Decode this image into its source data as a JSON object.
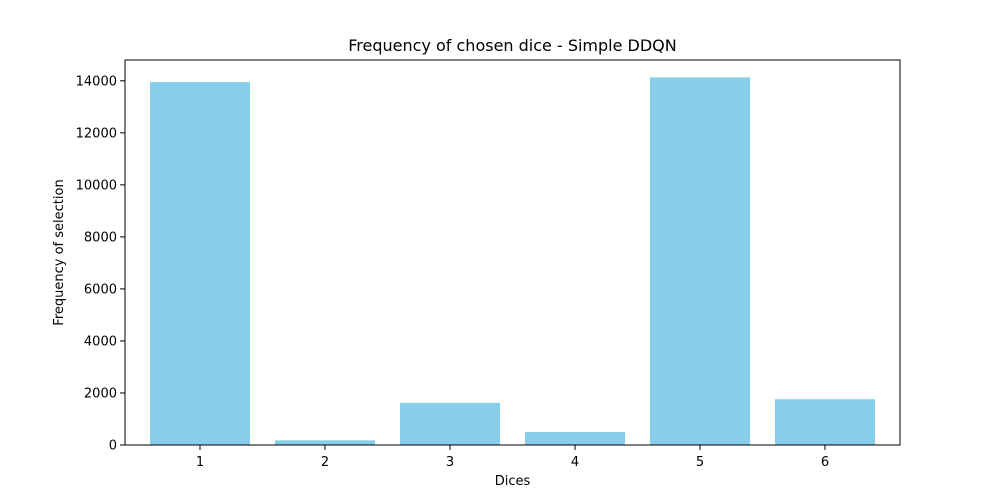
{
  "chart_data": {
    "type": "bar",
    "title": "Frequency of chosen dice - Simple DDQN",
    "xlabel": "Dices",
    "ylabel": "Frequency of selection",
    "categories": [
      "1",
      "2",
      "3",
      "4",
      "5",
      "6"
    ],
    "values": [
      13950,
      180,
      1620,
      500,
      14130,
      1760
    ],
    "ylim": [
      0,
      14800
    ],
    "yticks": [
      0,
      2000,
      4000,
      6000,
      8000,
      10000,
      12000,
      14000
    ],
    "ytick_labels": [
      "0",
      "2000",
      "4000",
      "6000",
      "8000",
      "10000",
      "12000",
      "14000"
    ],
    "bar_color": "#87CEEB",
    "grid": false,
    "legend": false
  }
}
